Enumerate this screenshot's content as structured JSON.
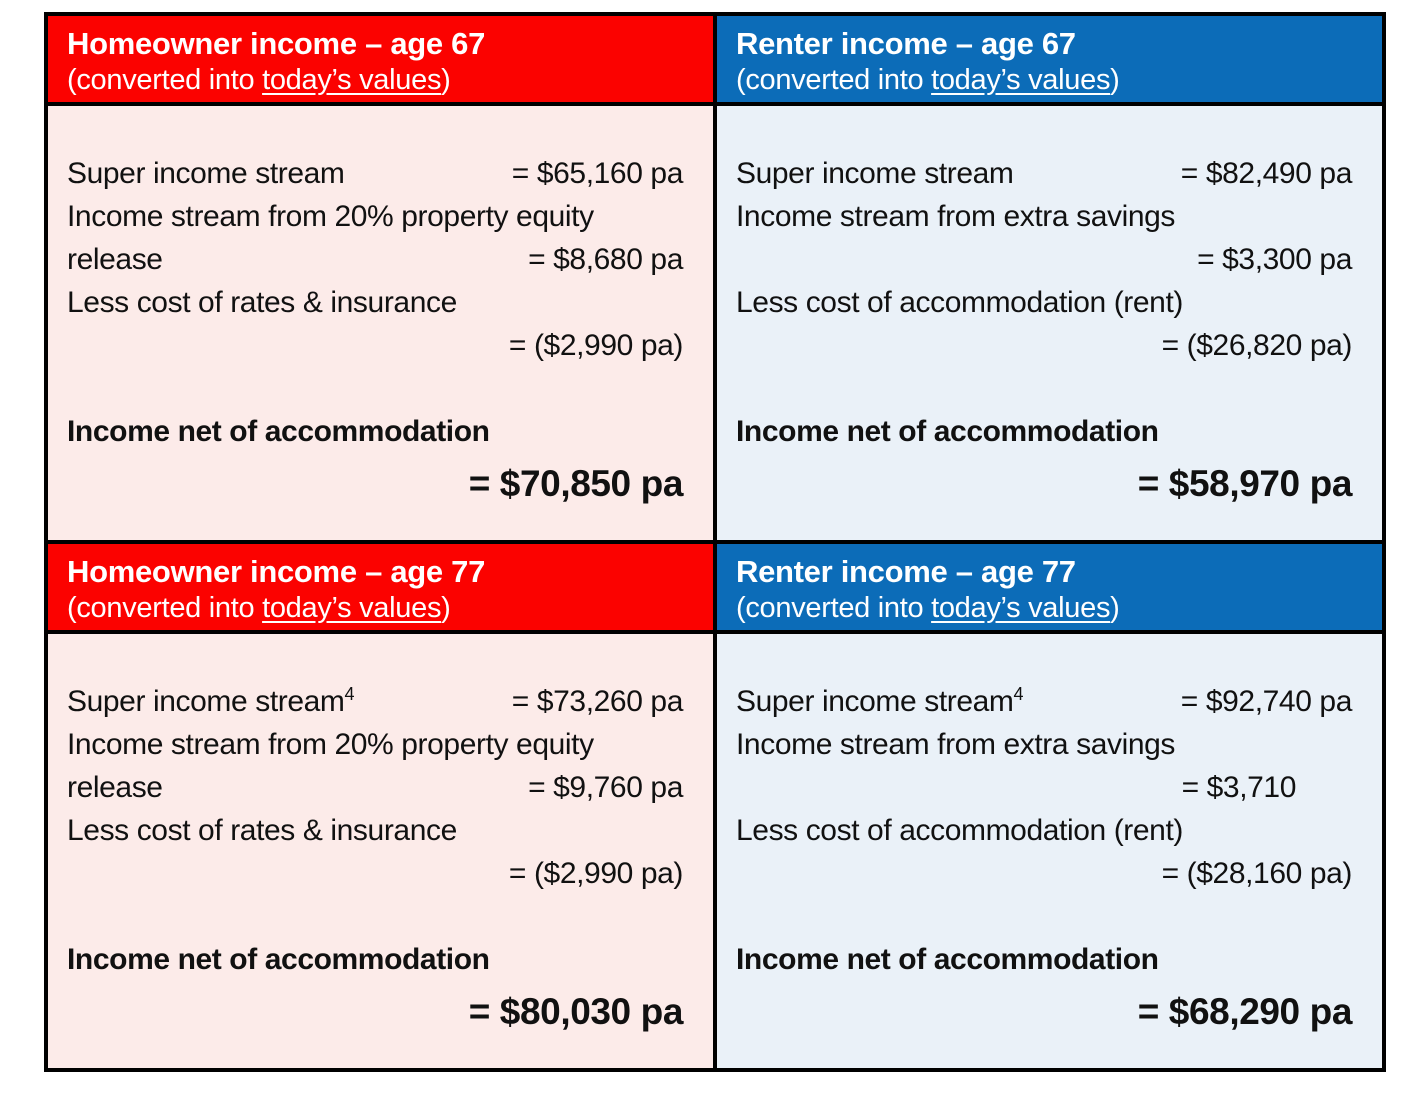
{
  "colors": {
    "header_red": "#fb0200",
    "header_blue": "#0c6cb8",
    "body_pink": "#fcebe9",
    "body_light_blue": "#eaf1f8",
    "grid_border": "#000000",
    "header_text": "#ffffff",
    "body_text": "#111111"
  },
  "panels": [
    {
      "theme": "red",
      "title": "Homeowner income – age 67",
      "subtitle_prefix": "(converted into ",
      "subtitle_underline": "today’s values",
      "subtitle_suffix": ")",
      "lines": [
        {
          "label": "Super income stream",
          "value": "= $65,160 pa"
        },
        {
          "text": "Income stream from 20% property equity"
        },
        {
          "label": "release",
          "value": "= $8,680 pa"
        },
        {
          "text": "Less cost of rates & insurance"
        },
        {
          "value": "= ($2,990 pa)"
        }
      ],
      "total_label": "Income net of accommodation",
      "total_value": "= $70,850 pa"
    },
    {
      "theme": "blue",
      "title": "Renter income – age 67",
      "subtitle_prefix": "(converted into ",
      "subtitle_underline": "today’s values",
      "subtitle_suffix": ")",
      "lines": [
        {
          "label": "Super income stream",
          "value": "= $82,490 pa"
        },
        {
          "text": "Income stream from extra savings"
        },
        {
          "value": "= $3,300 pa"
        },
        {
          "text": "Less cost of accommodation (rent)"
        },
        {
          "value": "= ($26,820 pa)"
        }
      ],
      "total_label": "Income net of accommodation",
      "total_value": "= $58,970 pa"
    },
    {
      "theme": "red",
      "title": "Homeowner income – age 77",
      "subtitle_prefix": "(converted into ",
      "subtitle_underline": "today’s values",
      "subtitle_suffix": ")",
      "lines": [
        {
          "label": "Super income stream",
          "sup": "4",
          "value": "= $73,260 pa"
        },
        {
          "text": "Income stream from 20% property equity"
        },
        {
          "label": "release",
          "value": "= $9,760 pa"
        },
        {
          "text": "Less cost of rates & insurance"
        },
        {
          "value": "= ($2,990 pa)"
        }
      ],
      "total_label": "Income net of accommodation",
      "total_value": "= $80,030 pa"
    },
    {
      "theme": "blue",
      "title": "Renter income – age 77",
      "subtitle_prefix": "(converted into ",
      "subtitle_underline": "today’s values",
      "subtitle_suffix": ")",
      "lines": [
        {
          "label": "Super income stream",
          "sup": "4",
          "value": "= $92,740 pa"
        },
        {
          "text": "Income stream from extra savings"
        },
        {
          "value": "= $3,710"
        },
        {
          "text": "Less cost of accommodation (rent)"
        },
        {
          "value": "= ($28,160 pa)"
        }
      ],
      "total_label": "Income net of accommodation",
      "total_value": "= $68,290 pa"
    }
  ]
}
